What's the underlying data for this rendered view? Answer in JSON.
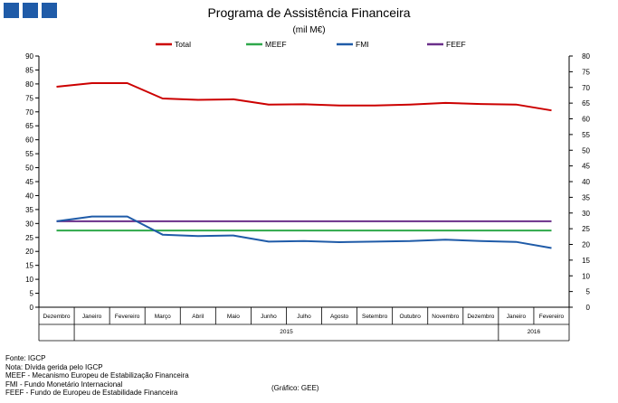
{
  "chart_data": {
    "type": "line",
    "title": "Programa de Assistência Financeira",
    "subtitle": "(mil M€)",
    "categories": [
      "Dezembro",
      "Janeiro",
      "Fevereiro",
      "Março",
      "Abril",
      "Maio",
      "Junho",
      "Julho",
      "Agosto",
      "Setembro",
      "Outubro",
      "Novembro",
      "Dezembro",
      "Janeiro",
      "Fevereiro"
    ],
    "year_labels": [
      {
        "label": "2015",
        "from": 1,
        "to": 12
      },
      {
        "label": "2016",
        "from": 13,
        "to": 14
      }
    ],
    "left_axis": {
      "min": 0,
      "max": 90,
      "step": 5
    },
    "right_axis": {
      "min": 0,
      "max": 80,
      "step": 5
    },
    "series": [
      {
        "name": "Total",
        "color": "#cc0000",
        "axis": "left",
        "values": [
          79,
          80.3,
          80.3,
          74.8,
          74.3,
          74.5,
          72.6,
          72.7,
          72.3,
          72.3,
          72.6,
          73.2,
          72.8,
          72.6,
          70.5
        ]
      },
      {
        "name": "MEEF",
        "color": "#2ea84a",
        "axis": "left",
        "values": [
          27.5,
          27.5,
          27.5,
          27.5,
          27.5,
          27.5,
          27.5,
          27.5,
          27.5,
          27.5,
          27.5,
          27.5,
          27.5,
          27.5,
          27.5
        ]
      },
      {
        "name": "FMI",
        "color": "#1f5ba8",
        "axis": "left",
        "values": [
          30.8,
          32.5,
          32.5,
          26,
          25.5,
          25.7,
          23.5,
          23.7,
          23.3,
          23.5,
          23.7,
          24.2,
          23.7,
          23.4,
          21.2
        ]
      },
      {
        "name": "FEEF",
        "color": "#6a2f8a",
        "axis": "left",
        "values": [
          30.8,
          30.8,
          30.8,
          30.8,
          30.8,
          30.8,
          30.8,
          30.8,
          30.8,
          30.8,
          30.8,
          30.8,
          30.8,
          30.8,
          30.8
        ]
      }
    ]
  },
  "notes": [
    "Fonte: IGCP",
    "Nota: Dívida gerida pelo IGCP",
    "MEEF - Mecanismo Europeu de Estabilização Financeira",
    "FMI - Fundo Monetário Internacional",
    "FEEF - Fundo de Europeu de Estabilidade Financeira"
  ],
  "credit": "(Gráfico: GEE)"
}
